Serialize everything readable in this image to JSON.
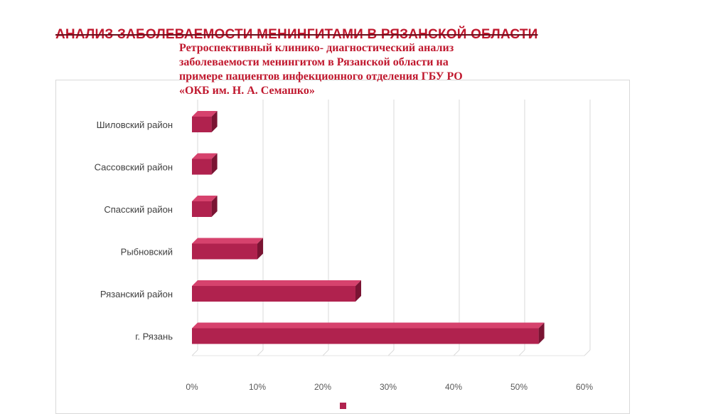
{
  "slide": {
    "title": "АНАЛИЗ ЗАБОЛЕВАЕМОСТИ МЕНИНГИТАМИ В РЯЗАНСКОЙ ОБЛАСТИ",
    "subtitle_lines": [
      "Ретроспективный клинико- диагностический анализ",
      "заболеваемости менингитом в Рязанской области на",
      "примере пациентов инфекционного отделения ГБУ РО",
      "«ОКБ им. Н. А. Семашко»"
    ]
  },
  "chart_data": {
    "type": "bar",
    "orientation": "horizontal",
    "style": "3d",
    "categories": [
      "Шиловский район",
      "Сассовский район",
      "Спасский район",
      "Рыбновский",
      "Рязанский район",
      "г. Рязань"
    ],
    "series": [
      {
        "values": [
          3,
          3,
          3,
          10,
          25,
          53
        ],
        "color": "#b0224e"
      }
    ],
    "x_ticks": [
      "0%",
      "10%",
      "20%",
      "30%",
      "40%",
      "50%",
      "60%"
    ],
    "xlim": [
      0,
      60
    ],
    "unit": "%",
    "grid": true,
    "legend": "bottom"
  }
}
